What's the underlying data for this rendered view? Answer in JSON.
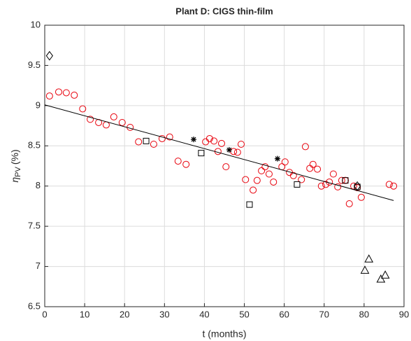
{
  "chart_data": {
    "type": "scatter",
    "title": "Plant D: CIGS thin-film",
    "x_label": "t (months)",
    "y_label": {
      "symbol": "η",
      "subscript": "PV",
      "unit": "(%)"
    },
    "xlim": [
      0,
      90
    ],
    "xticks": [
      0,
      10,
      20,
      30,
      40,
      50,
      60,
      70,
      80,
      90
    ],
    "ylim": [
      6.5,
      10
    ],
    "yticks": [
      6.5,
      7,
      7.5,
      8,
      8.5,
      9,
      9.5,
      10
    ],
    "grid": true,
    "series": [
      {
        "marker": "circle",
        "color": "#e8000b",
        "x": [
          1.2,
          3.5,
          5.4,
          7.4,
          9.5,
          11.4,
          13.5,
          15.4,
          17.3,
          19.4,
          21.4,
          23.5,
          27.3,
          29.4,
          31.3,
          33.4,
          35.4,
          40.3,
          41.3,
          42.4,
          43.4,
          44.3,
          45.4,
          47.3,
          48.3,
          49.2,
          50.3,
          52.2,
          53.2,
          54.3,
          55.2,
          56.2,
          57.3,
          59.4,
          60.2,
          61.3,
          62.3,
          64.3,
          65.3,
          66.4,
          67.2,
          68.3,
          69.3,
          70.4,
          71.3,
          72.3,
          73.4,
          74.4,
          75.3,
          76.3,
          77.4,
          78.3,
          79.3,
          86.3,
          87.4
        ],
        "values": [
          9.12,
          9.17,
          9.16,
          9.13,
          8.96,
          8.83,
          8.79,
          8.76,
          8.86,
          8.79,
          8.73,
          8.55,
          8.52,
          8.59,
          8.61,
          8.31,
          8.27,
          8.55,
          8.59,
          8.56,
          8.43,
          8.53,
          8.24,
          8.43,
          8.42,
          8.52,
          8.08,
          7.95,
          8.07,
          8.19,
          8.24,
          8.15,
          8.05,
          8.24,
          8.3,
          8.17,
          8.13,
          8.08,
          8.49,
          8.22,
          8.27,
          8.21,
          8.0,
          8.02,
          8.05,
          8.15,
          7.99,
          8.07,
          8.07,
          7.78,
          8.0,
          7.98,
          7.86,
          8.02,
          8.0
        ]
      },
      {
        "marker": "diamond",
        "color": "#000000",
        "x": [
          1.2,
          78.3
        ],
        "values": [
          9.62,
          8.0
        ]
      },
      {
        "marker": "square",
        "color": "#000000",
        "x": [
          25.4,
          39.2,
          51.3,
          63.2,
          75.3,
          78.3
        ],
        "values": [
          8.56,
          8.41,
          7.77,
          8.02,
          8.07,
          7.99
        ]
      },
      {
        "marker": "asterisk",
        "color": "#000000",
        "x": [
          37.3,
          46.2,
          58.3
        ],
        "values": [
          8.58,
          8.45,
          8.34
        ]
      },
      {
        "marker": "triangle",
        "color": "#000000",
        "x": [
          81.2,
          80.2,
          84.2,
          85.3
        ],
        "values": [
          7.09,
          6.95,
          6.84,
          6.89
        ]
      },
      {
        "marker": "line",
        "color": "#000000",
        "x": [
          0,
          87.4
        ],
        "values": [
          9.01,
          7.82
        ]
      }
    ]
  }
}
